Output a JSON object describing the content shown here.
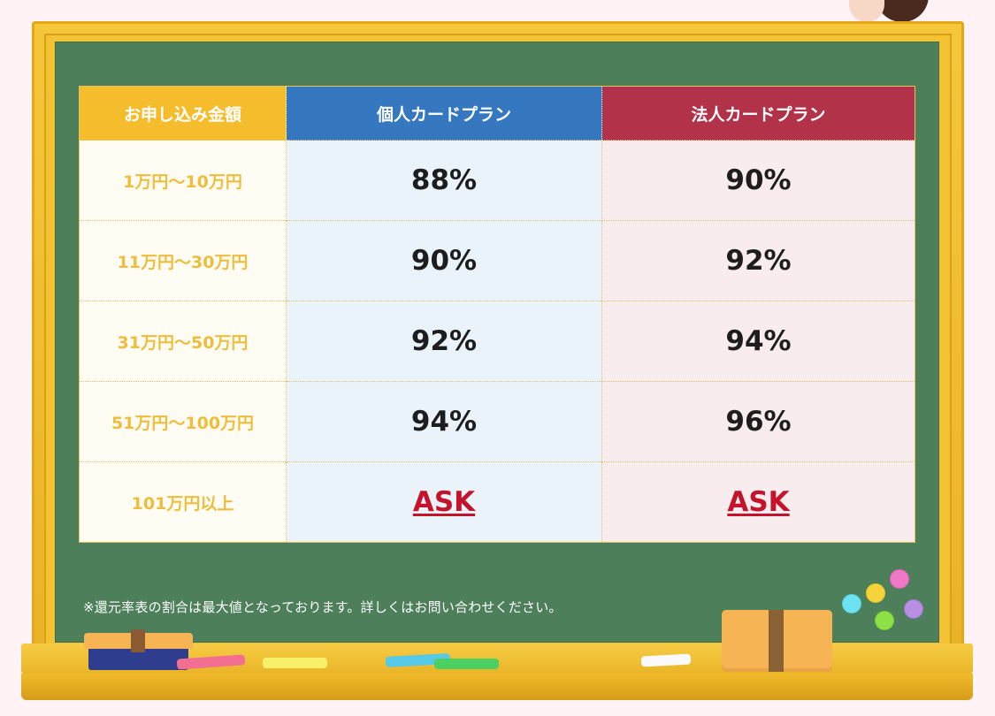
{
  "table": {
    "headers": {
      "amount": "お申し込み金額",
      "personal": "個人カードプラン",
      "corporate": "法人カードプラン"
    },
    "rows": [
      {
        "amount": "1万円～10万円",
        "personal": "88%",
        "corporate": "90%"
      },
      {
        "amount": "11万円～30万円",
        "personal": "90%",
        "corporate": "92%"
      },
      {
        "amount": "31万円～50万円",
        "personal": "92%",
        "corporate": "94%"
      },
      {
        "amount": "51万円～100万円",
        "personal": "94%",
        "corporate": "96%"
      },
      {
        "amount": "101万円以上",
        "personal": "ASK",
        "corporate": "ASK"
      }
    ]
  },
  "note": "※還元率表の割合は最大値となっております。詳しくはお問い合わせください。",
  "colors": {
    "header_amount": "#f5bd2c",
    "header_personal": "#3578bf",
    "header_corporate": "#b23349",
    "ask_link": "#c3142c",
    "board": "#4c7f5a",
    "frame": "#f3c233"
  }
}
